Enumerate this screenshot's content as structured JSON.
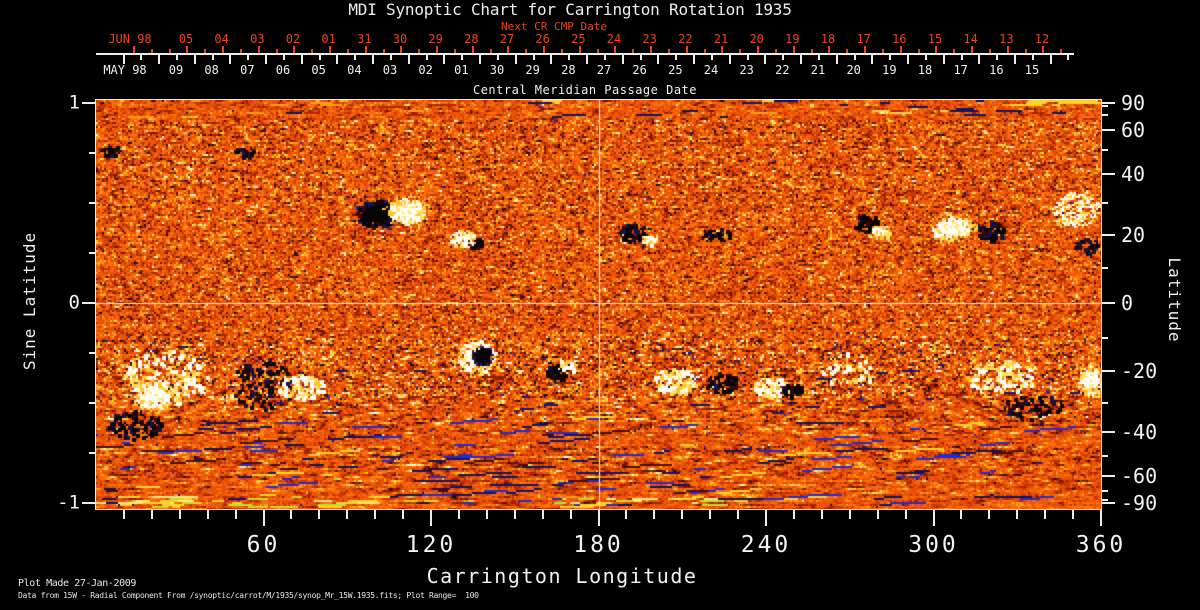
{
  "title": "MDI Synoptic Chart for Carrington Rotation 1935",
  "top_axis": {
    "label": "Next CR CMP Date",
    "month_label": "JUN 98",
    "color": "#e8451c",
    "dates": [
      "05",
      "04",
      "03",
      "02",
      "01",
      "31",
      "30",
      "29",
      "28",
      "27",
      "26",
      "25",
      "24",
      "23",
      "22",
      "21",
      "20",
      "19",
      "18",
      "17",
      "16",
      "15",
      "14",
      "13",
      "12"
    ]
  },
  "cmp_axis": {
    "title": "Central Meridian Passage Date",
    "month_label": "MAY 98",
    "dates": [
      "09",
      "08",
      "07",
      "06",
      "05",
      "04",
      "03",
      "02",
      "01",
      "30",
      "29",
      "28",
      "27",
      "26",
      "25",
      "24",
      "23",
      "22",
      "21",
      "20",
      "19",
      "18",
      "17",
      "16",
      "15"
    ]
  },
  "x_axis": {
    "title": "Carrington Longitude",
    "range": [
      0,
      360
    ],
    "major_ticks": [
      60,
      120,
      180,
      240,
      300,
      360
    ],
    "minor_step_deg": 10
  },
  "y_left_axis": {
    "title": "Sine Latitude",
    "range": [
      -1,
      1
    ],
    "major_ticks": [
      1,
      0,
      -1
    ],
    "minor_step": 0.25
  },
  "y_right_axis": {
    "title": "Latitude",
    "labeled_ticks": [
      90,
      60,
      40,
      20,
      0,
      -20,
      -40,
      -60,
      -90
    ],
    "minor_step_deg": 10
  },
  "footer": {
    "line1": "Plot Made 27-Jan-2009",
    "line2": "Data from 15W - Radial Component From /synoptic/carrot/M/1935/synop_Mr_15W.1935.fits; Plot Range=  100"
  },
  "chart_data": {
    "type": "heatmap",
    "title": "MDI Synoptic Chart for Carrington Rotation 1935",
    "description": "Full-surface radial magnetic field synoptic map for Carrington rotation 1935. Orange mottle = quiet-Sun noise; white/yellow patches = positive polarity flux; black/navy patches = negative polarity flux. White crosshair lines mark longitude 180 and latitude 0.",
    "plot_range": 100,
    "x": {
      "label": "Carrington Longitude",
      "range": [
        0,
        360
      ],
      "major_ticks": [
        60,
        120,
        180,
        240,
        300,
        360
      ],
      "minor_step_deg": 10
    },
    "y": {
      "label": "Sine Latitude",
      "range": [
        -1,
        1
      ],
      "major_ticks": [
        1,
        0,
        -1
      ],
      "right_label": "Latitude",
      "right_ticks_deg": [
        90,
        60,
        40,
        20,
        0,
        -20,
        -40,
        -60,
        -90
      ]
    },
    "crosshair": {
      "carrington_longitude": 180,
      "latitude": 0
    },
    "colormap": {
      "background_quiet": "#ee5a08",
      "red_mottle": "#c93807",
      "dark_red": "#a02400",
      "near_black": "#200a00",
      "navy_negative": "#1e1e82",
      "blue_streak": "#2a2ac8",
      "bright_orange": "#ff9c18",
      "yellow": "#ffc62e",
      "lime_speck": "#c4dc2c",
      "white_positive": "#fffdf2"
    },
    "active_regions": [
      {
        "lon": 100,
        "slat": 0.45,
        "rx": 20,
        "ry": 13,
        "n": 260,
        "pol": "neg",
        "solid": 1
      },
      {
        "lon": 111,
        "slat": 0.465,
        "rx": 18,
        "ry": 12,
        "n": 240,
        "pol": "pos",
        "solid": 1
      },
      {
        "lon": 131,
        "slat": 0.33,
        "rx": 13,
        "ry": 8,
        "n": 80,
        "pol": "pos",
        "solid": 0
      },
      {
        "lon": 136,
        "slat": 0.3,
        "rx": 8,
        "ry": 5,
        "n": 20,
        "pol": "neg",
        "solid": 0
      },
      {
        "lon": 192,
        "slat": 0.355,
        "rx": 14,
        "ry": 9,
        "n": 80,
        "pol": "neg",
        "solid": 0
      },
      {
        "lon": 198,
        "slat": 0.32,
        "rx": 8,
        "ry": 5,
        "n": 25,
        "pol": "pos",
        "solid": 0
      },
      {
        "lon": 222,
        "slat": 0.345,
        "rx": 14,
        "ry": 8,
        "n": 40,
        "pol": "neg",
        "solid": 0
      },
      {
        "lon": 276,
        "slat": 0.4,
        "rx": 13,
        "ry": 9,
        "n": 65,
        "pol": "neg",
        "solid": 0
      },
      {
        "lon": 281,
        "slat": 0.365,
        "rx": 9,
        "ry": 6,
        "n": 30,
        "pol": "pos",
        "solid": 0
      },
      {
        "lon": 306,
        "slat": 0.38,
        "rx": 20,
        "ry": 11,
        "n": 150,
        "pol": "pos",
        "solid": 1
      },
      {
        "lon": 320,
        "slat": 0.365,
        "rx": 14,
        "ry": 10,
        "n": 95,
        "pol": "neg",
        "solid": 0
      },
      {
        "lon": 350,
        "slat": 0.465,
        "rx": 22,
        "ry": 17,
        "n": 90,
        "pol": "pos",
        "solid": 0,
        "style": "streaky"
      },
      {
        "lon": 355,
        "slat": 0.29,
        "rx": 13,
        "ry": 8,
        "n": 35,
        "pol": "neg",
        "solid": 0
      },
      {
        "lon": 25,
        "slat": -0.365,
        "rx": 42,
        "ry": 28,
        "n": 280,
        "pol": "pos",
        "solid": 0
      },
      {
        "lon": 20,
        "slat": -0.455,
        "rx": 18,
        "ry": 13,
        "n": 160,
        "pol": "pos",
        "solid": 1
      },
      {
        "lon": 14,
        "slat": -0.605,
        "rx": 28,
        "ry": 14,
        "n": 130,
        "pol": "neg",
        "solid": 0
      },
      {
        "lon": 59,
        "slat": -0.41,
        "rx": 32,
        "ry": 26,
        "n": 150,
        "pol": "neg",
        "solid": 0
      },
      {
        "lon": 73,
        "slat": -0.415,
        "rx": 24,
        "ry": 13,
        "n": 130,
        "pol": "pos",
        "solid": 0
      },
      {
        "lon": 136,
        "slat": -0.265,
        "rx": 20,
        "ry": 16,
        "n": 170,
        "pol": "pos",
        "solid": 1
      },
      {
        "lon": 138,
        "slat": -0.26,
        "rx": 9,
        "ry": 8,
        "n": 85,
        "pol": "neg",
        "solid": 1
      },
      {
        "lon": 165,
        "slat": -0.335,
        "rx": 13,
        "ry": 10,
        "n": 60,
        "pol": "neg",
        "solid": 0
      },
      {
        "lon": 168,
        "slat": -0.315,
        "rx": 9,
        "ry": 6,
        "n": 25,
        "pol": "pos",
        "solid": 0
      },
      {
        "lon": 207,
        "slat": -0.385,
        "rx": 22,
        "ry": 13,
        "n": 130,
        "pol": "pos",
        "solid": 0
      },
      {
        "lon": 224,
        "slat": -0.395,
        "rx": 16,
        "ry": 10,
        "n": 75,
        "pol": "neg",
        "solid": 0
      },
      {
        "lon": 242,
        "slat": -0.42,
        "rx": 18,
        "ry": 11,
        "n": 90,
        "pol": "pos",
        "solid": 0
      },
      {
        "lon": 249,
        "slat": -0.43,
        "rx": 10,
        "ry": 7,
        "n": 45,
        "pol": "neg",
        "solid": 0
      },
      {
        "lon": 269,
        "slat": -0.335,
        "rx": 26,
        "ry": 18,
        "n": 60,
        "pol": "pos",
        "solid": 0
      },
      {
        "lon": 324,
        "slat": -0.365,
        "rx": 36,
        "ry": 17,
        "n": 170,
        "pol": "pos",
        "solid": 0
      },
      {
        "lon": 335,
        "slat": -0.515,
        "rx": 30,
        "ry": 12,
        "n": 85,
        "pol": "neg",
        "solid": 0
      },
      {
        "lon": 356,
        "slat": -0.38,
        "rx": 12,
        "ry": 14,
        "n": 100,
        "pol": "pos",
        "solid": 1
      },
      {
        "lon": 5,
        "slat": 0.765,
        "rx": 10,
        "ry": 5,
        "n": 25,
        "pol": "neg",
        "solid": 0
      },
      {
        "lon": 52,
        "slat": 0.755,
        "rx": 12,
        "ry": 5,
        "n": 28,
        "pol": "neg",
        "solid": 0
      }
    ]
  }
}
